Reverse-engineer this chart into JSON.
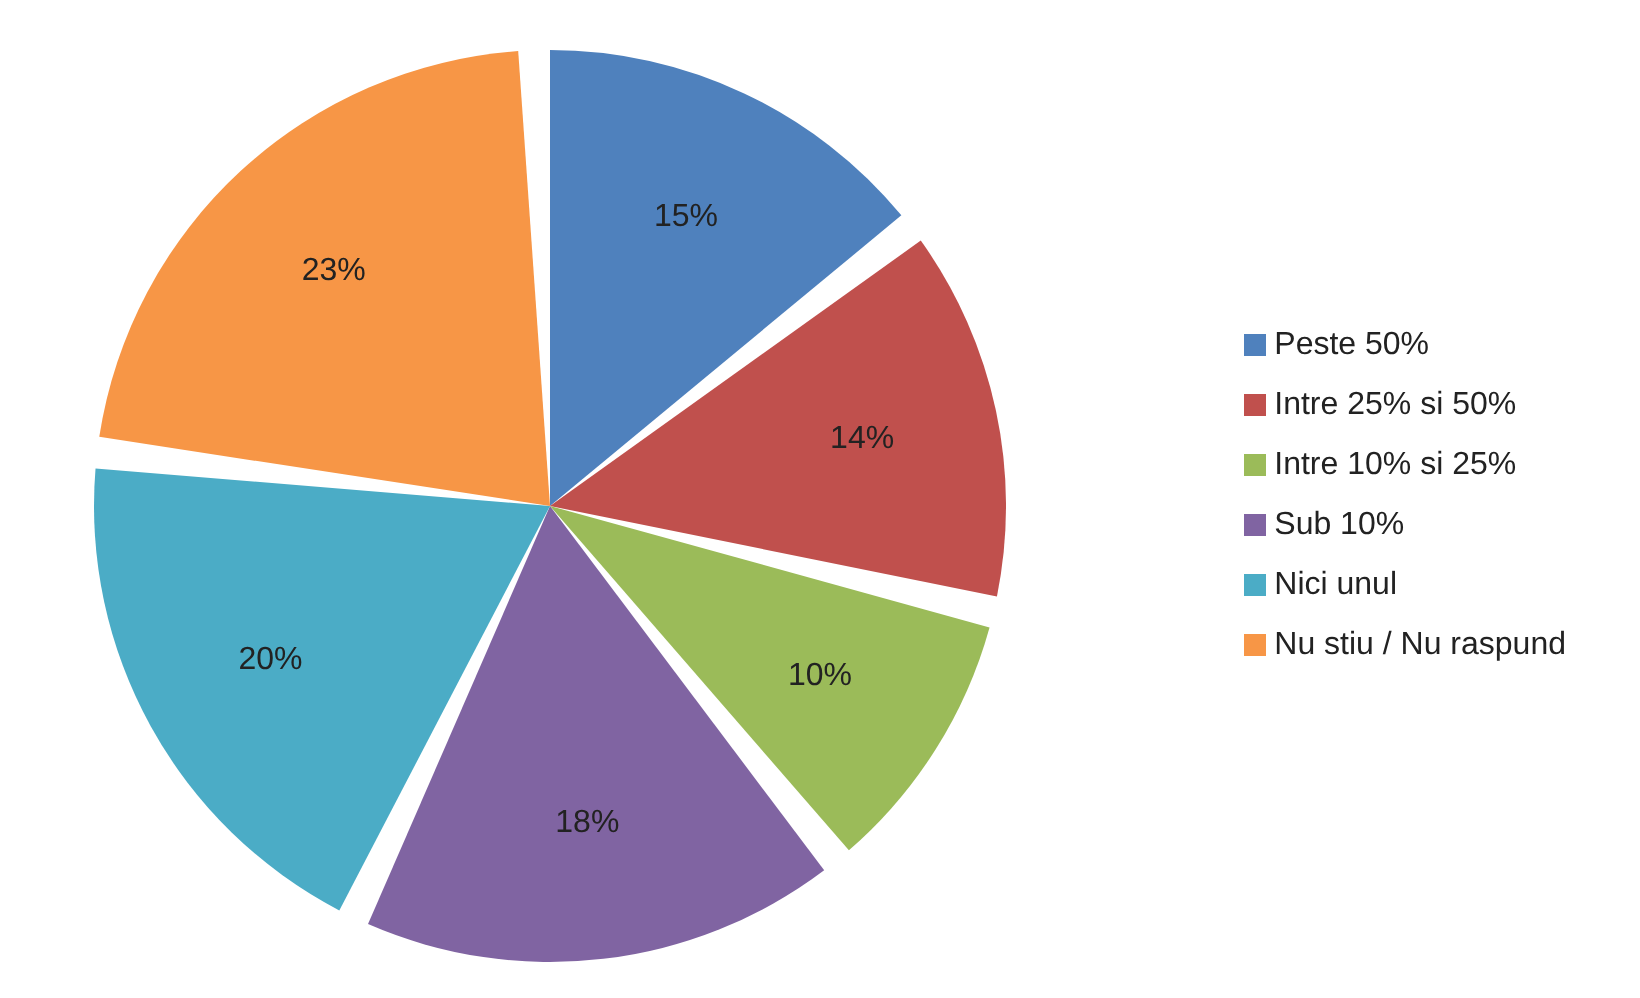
{
  "chart_data": {
    "type": "pie",
    "categories": [
      "Peste 50%",
      "Intre 25% si 50%",
      "Intre 10% si 25%",
      "Sub 10%",
      "Nici unul",
      "Nu stiu / Nu raspund"
    ],
    "values": [
      15,
      14,
      10,
      18,
      20,
      23
    ],
    "value_labels": [
      "15%",
      "14%",
      "10%",
      "18%",
      "20%",
      "23%"
    ],
    "colors": [
      "#4f81bd",
      "#c0504d",
      "#9bbb59",
      "#8064a2",
      "#4bacc6",
      "#f79646"
    ],
    "legend": "right"
  }
}
